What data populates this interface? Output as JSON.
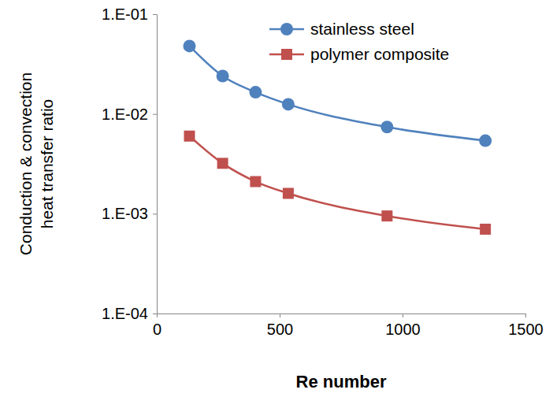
{
  "chart_data": {
    "type": "line",
    "xlabel": "Re number",
    "ylabel": [
      "Conduction & convection",
      "heat transfer ratio"
    ],
    "x": [
      133,
      268,
      402,
      535,
      937,
      1337
    ],
    "series": [
      {
        "name": "stainless steel",
        "color": "#4f81bd",
        "marker": "circle",
        "line_style": "smooth",
        "values": [
          0.048,
          0.024,
          0.0165,
          0.0125,
          0.0074,
          0.0054
        ]
      },
      {
        "name": "polymer composite",
        "color": "#c0504d",
        "marker": "square",
        "line_style": "smooth",
        "values": [
          0.006,
          0.0032,
          0.0021,
          0.0016,
          0.00095,
          0.0007
        ]
      }
    ],
    "xlim": [
      0,
      1500
    ],
    "xticks": [
      0,
      500,
      1000,
      1500
    ],
    "ylim": [
      0.0001,
      0.1
    ],
    "yticks": [
      {
        "value": 0.0001,
        "label": "1.E-04"
      },
      {
        "value": 0.001,
        "label": "1.E-03"
      },
      {
        "value": 0.01,
        "label": "1.E-02"
      },
      {
        "value": 0.1,
        "label": "1.E-01"
      }
    ],
    "log": "y",
    "grid": false,
    "legend": "upper right"
  }
}
